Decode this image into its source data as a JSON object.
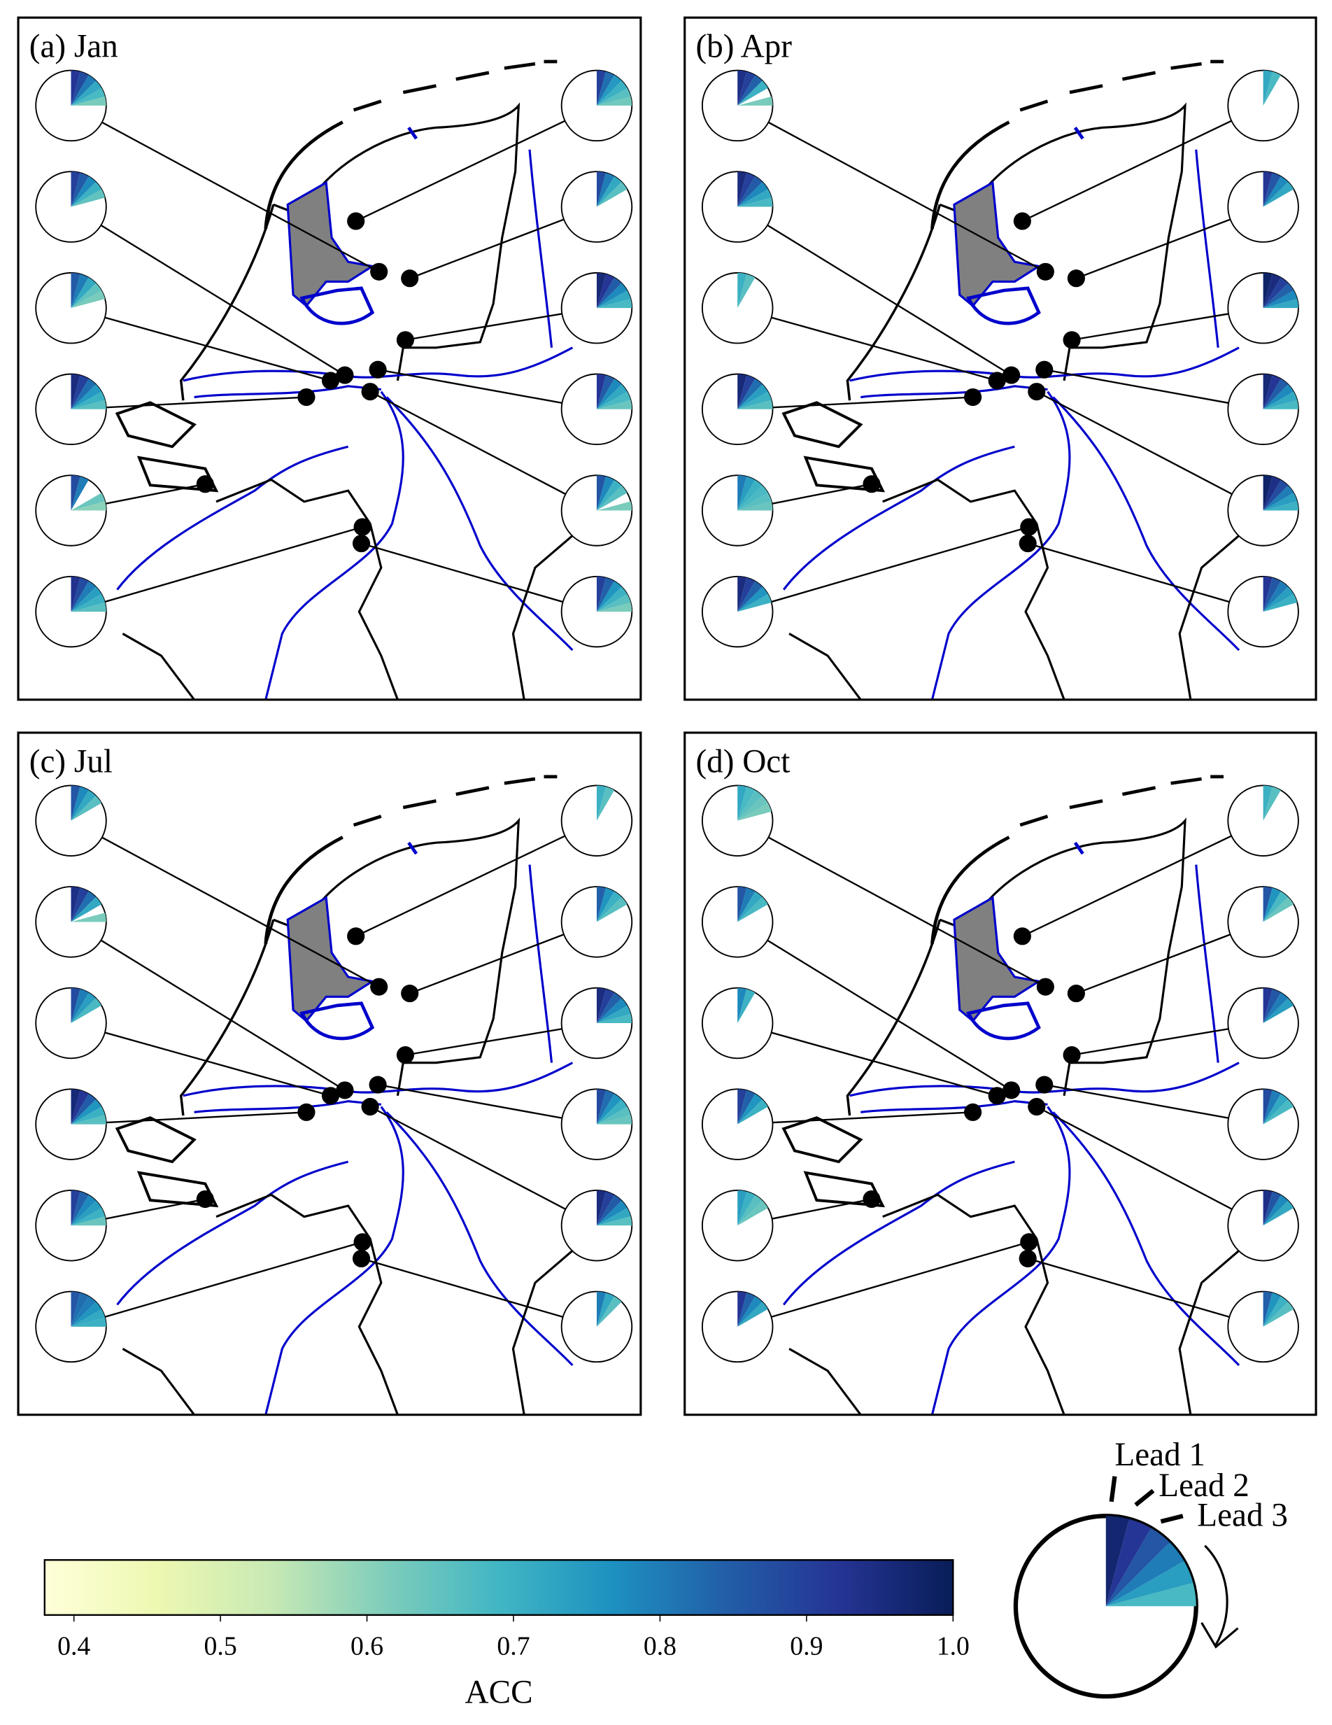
{
  "panels": [
    {
      "title": "(a) Jan",
      "stations": [
        [
          0.92,
          0.88,
          0.8,
          0.72,
          0.68,
          0.62
        ],
        [
          0.9,
          0.85,
          0.78,
          0.7,
          0.65,
          null
        ],
        [
          0.85,
          0.8,
          0.72,
          0.65,
          0.62,
          null
        ],
        [
          0.95,
          0.9,
          0.82,
          0.75,
          0.7,
          0.66
        ],
        [
          0.88,
          0.8,
          null,
          null,
          0.64,
          0.6
        ],
        [
          0.93,
          0.88,
          0.8,
          0.74,
          0.7,
          0.66
        ],
        [
          0.9,
          0.82,
          0.75,
          0.7,
          0.66,
          0.63
        ],
        [
          0.88,
          0.8,
          0.72,
          0.66,
          null,
          null
        ],
        [
          0.96,
          0.92,
          0.85,
          0.78,
          0.72,
          0.68
        ],
        [
          0.92,
          0.85,
          0.78,
          0.72,
          0.68,
          0.64
        ],
        [
          0.86,
          0.78,
          0.7,
          0.66,
          null,
          0.62
        ],
        [
          0.9,
          0.84,
          0.76,
          0.7,
          0.66,
          0.62
        ]
      ]
    },
    {
      "title": "(b) Apr",
      "stations": [
        [
          0.94,
          0.9,
          0.84,
          0.7,
          null,
          0.62
        ],
        [
          0.95,
          0.9,
          0.85,
          0.78,
          0.72,
          0.68
        ],
        [
          0.7,
          0.66,
          null,
          null,
          null,
          null
        ],
        [
          0.96,
          0.9,
          0.82,
          0.74,
          0.7,
          0.66
        ],
        [
          0.8,
          0.74,
          0.7,
          0.68,
          0.66,
          0.64
        ],
        [
          0.95,
          0.9,
          0.84,
          0.76,
          0.7,
          null
        ],
        [
          0.72,
          0.68,
          null,
          null,
          null,
          null
        ],
        [
          0.92,
          0.86,
          0.78,
          0.72,
          null,
          null
        ],
        [
          0.98,
          0.95,
          0.9,
          0.84,
          0.78,
          0.72
        ],
        [
          0.96,
          0.92,
          0.85,
          0.78,
          0.72,
          0.68
        ],
        [
          0.98,
          0.94,
          0.88,
          0.8,
          0.74,
          0.7
        ],
        [
          0.92,
          0.86,
          0.8,
          0.74,
          0.7,
          null
        ]
      ]
    },
    {
      "title": "(c) Jul",
      "stations": [
        [
          0.86,
          0.78,
          0.72,
          0.66,
          null,
          null
        ],
        [
          0.94,
          0.9,
          0.82,
          0.72,
          null,
          0.62
        ],
        [
          0.88,
          0.8,
          0.74,
          0.68,
          null,
          null
        ],
        [
          0.96,
          0.92,
          0.85,
          0.76,
          0.7,
          0.66
        ],
        [
          0.9,
          0.84,
          0.78,
          0.74,
          0.7,
          0.64
        ],
        [
          0.86,
          0.82,
          0.8,
          0.76,
          0.72,
          0.7
        ],
        [
          0.7,
          0.66,
          null,
          null,
          null,
          null
        ],
        [
          0.84,
          0.76,
          0.7,
          0.66,
          null,
          null
        ],
        [
          0.95,
          0.9,
          0.84,
          0.78,
          0.72,
          0.68
        ],
        [
          0.88,
          0.82,
          0.76,
          0.7,
          0.66,
          0.64
        ],
        [
          0.95,
          0.9,
          0.85,
          0.78,
          0.72,
          0.66
        ],
        [
          0.8,
          0.72,
          0.66,
          null,
          null,
          null
        ]
      ]
    },
    {
      "title": "(d) Oct",
      "stations": [
        [
          0.72,
          0.68,
          0.66,
          0.64,
          0.62,
          null
        ],
        [
          0.86,
          0.8,
          0.72,
          0.68,
          null,
          null
        ],
        [
          0.78,
          0.7,
          null,
          null,
          null,
          null
        ],
        [
          0.9,
          0.84,
          0.76,
          0.7,
          null,
          null
        ],
        [
          0.74,
          0.7,
          0.66,
          0.64,
          null,
          null
        ],
        [
          0.92,
          0.84,
          0.78,
          0.72,
          null,
          null
        ],
        [
          0.7,
          0.66,
          null,
          null,
          null,
          null
        ],
        [
          0.86,
          0.76,
          0.68,
          0.64,
          null,
          null
        ],
        [
          0.92,
          0.86,
          0.8,
          0.74,
          null,
          null
        ],
        [
          0.88,
          0.8,
          0.72,
          0.68,
          null,
          null
        ],
        [
          0.94,
          0.86,
          0.78,
          0.72,
          null,
          null
        ],
        [
          0.84,
          0.76,
          0.7,
          0.66,
          null,
          null
        ]
      ]
    }
  ],
  "colorbar": {
    "label": "ACC",
    "xlim": [
      0.38,
      1.0
    ],
    "xticks": [
      0.4,
      0.5,
      0.6,
      0.7,
      0.8,
      0.9,
      {
        "value": 1,
        "label": "1.0"
      }
    ],
    "colors": [
      "#ffffd9",
      "#edf8b1",
      "#c7e9b4",
      "#7fcdbb",
      "#41b6c4",
      "#1d91c0",
      "#225ea8",
      "#253494",
      "#081d58"
    ]
  },
  "legend": {
    "labels": [
      "Lead 1",
      "Lead 2",
      "Lead 3"
    ],
    "values": [
      0.97,
      0.92,
      0.86,
      0.8,
      0.74,
      0.68
    ]
  }
}
